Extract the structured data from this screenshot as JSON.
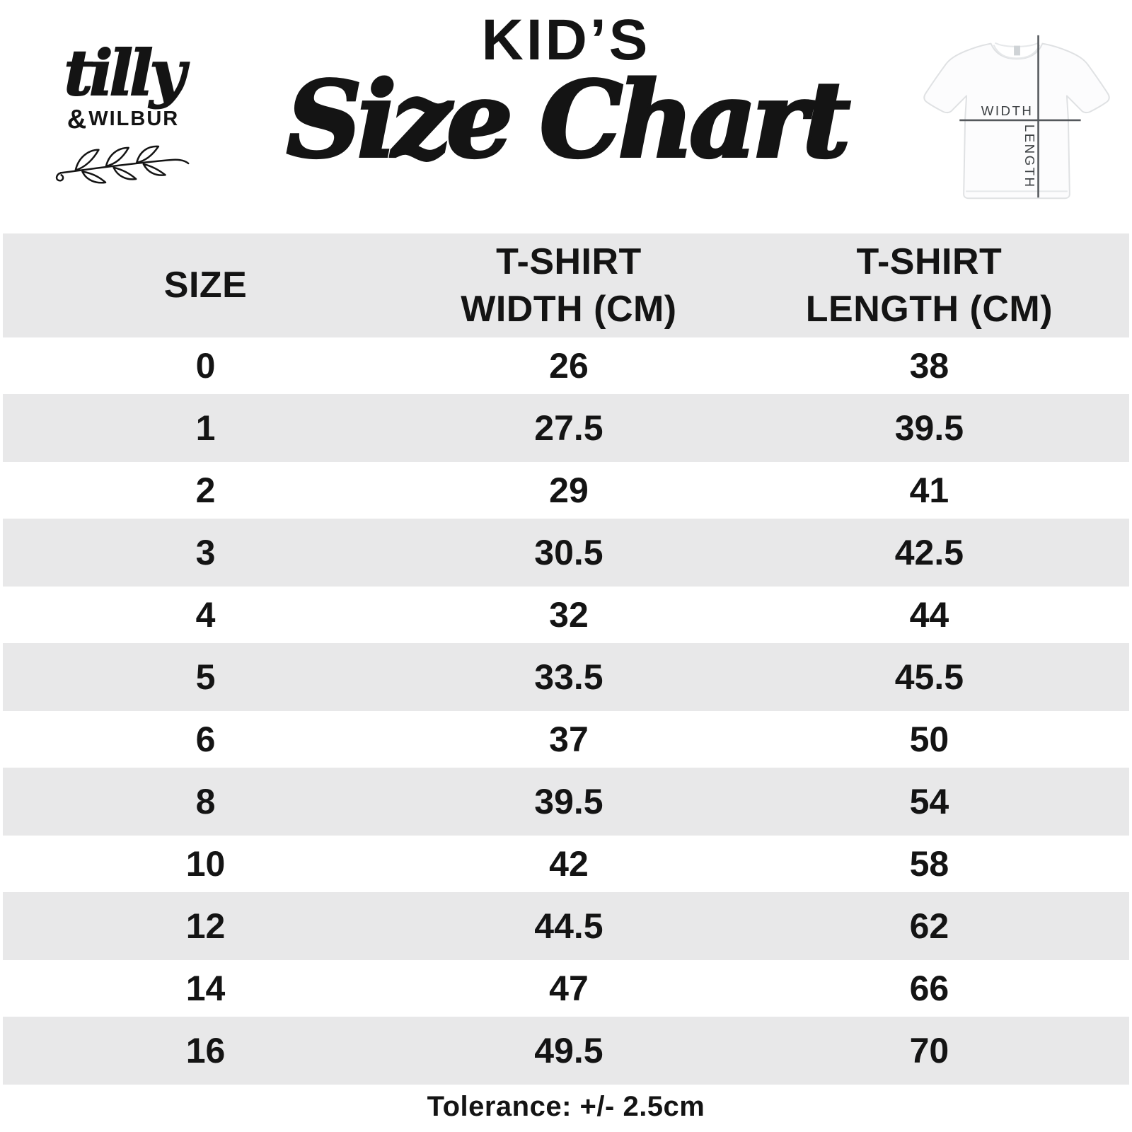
{
  "brand": {
    "script_name": "tilly",
    "ampersand": "&",
    "secondary_name": "WILBUR"
  },
  "header": {
    "kicker": "KID’S",
    "title": "Size Chart"
  },
  "shirt_diagram": {
    "width_label": "WIDTH",
    "length_label": "LENGTH"
  },
  "table": {
    "header": {
      "size": "SIZE",
      "width_lines": [
        "T-SHIRT",
        "WIDTH (CM)"
      ],
      "length_lines": [
        "T-SHIRT",
        "LENGTH (CM)"
      ]
    },
    "rows": [
      {
        "size": "0",
        "width": "26",
        "length": "38"
      },
      {
        "size": "1",
        "width": "27.5",
        "length": "39.5"
      },
      {
        "size": "2",
        "width": "29",
        "length": "41"
      },
      {
        "size": "3",
        "width": "30.5",
        "length": "42.5"
      },
      {
        "size": "4",
        "width": "32",
        "length": "44"
      },
      {
        "size": "5",
        "width": "33.5",
        "length": "45.5"
      },
      {
        "size": "6",
        "width": "37",
        "length": "50"
      },
      {
        "size": "8",
        "width": "39.5",
        "length": "54"
      },
      {
        "size": "10",
        "width": "42",
        "length": "58"
      },
      {
        "size": "12",
        "width": "44.5",
        "length": "62"
      },
      {
        "size": "14",
        "width": "47",
        "length": "66"
      },
      {
        "size": "16",
        "width": "49.5",
        "length": "70"
      }
    ]
  },
  "footer": {
    "tolerance_note": "Tolerance: +/- 2.5cm"
  },
  "colors": {
    "ink": "#141414",
    "row_alt": "#e8e8e9",
    "shirt_line": "#54585c"
  },
  "chart_data": {
    "type": "table",
    "title": "KID'S Size Chart",
    "columns": [
      "SIZE",
      "T-SHIRT WIDTH (CM)",
      "T-SHIRT LENGTH (CM)"
    ],
    "rows": [
      [
        0,
        26,
        38
      ],
      [
        1,
        27.5,
        39.5
      ],
      [
        2,
        29,
        41
      ],
      [
        3,
        30.5,
        42.5
      ],
      [
        4,
        32,
        44
      ],
      [
        5,
        33.5,
        45.5
      ],
      [
        6,
        37,
        50
      ],
      [
        8,
        39.5,
        54
      ],
      [
        10,
        42,
        58
      ],
      [
        12,
        44.5,
        62
      ],
      [
        14,
        47,
        66
      ],
      [
        16,
        49.5,
        70
      ]
    ],
    "footnote": "Tolerance: +/- 2.5cm",
    "layout": {
      "alternating_row_shading": true,
      "grid": false
    }
  }
}
